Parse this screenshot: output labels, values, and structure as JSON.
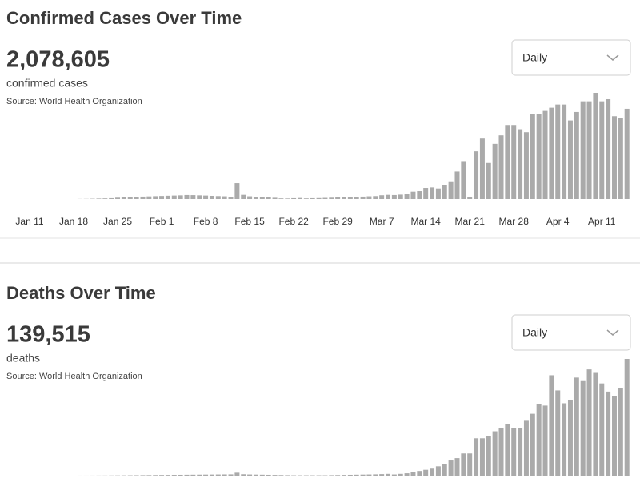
{
  "chart_data": [
    {
      "type": "bar",
      "title": "Confirmed Cases Over Time",
      "headline": "2,078,605",
      "subtitle": "confirmed cases",
      "source": "Source:  World Health Organization",
      "dropdown": "Daily",
      "color": "#aaaaaa",
      "categories": [
        "Jan 11",
        null,
        null,
        null,
        null,
        null,
        null,
        "Jan 18",
        null,
        null,
        null,
        null,
        null,
        null,
        "Jan 25",
        null,
        null,
        null,
        null,
        null,
        null,
        "Feb 1",
        null,
        null,
        null,
        null,
        null,
        null,
        "Feb 8",
        null,
        null,
        null,
        null,
        null,
        null,
        "Feb 15",
        null,
        null,
        null,
        null,
        null,
        null,
        "Feb 22",
        null,
        null,
        null,
        null,
        null,
        null,
        "Feb 29",
        null,
        null,
        null,
        null,
        null,
        null,
        "Mar 7",
        null,
        null,
        null,
        null,
        null,
        null,
        "Mar 14",
        null,
        null,
        null,
        null,
        null,
        null,
        "Mar 21",
        null,
        null,
        null,
        null,
        null,
        null,
        "Mar 28",
        null,
        null,
        null,
        null,
        null,
        null,
        "Apr 4",
        null,
        null,
        null,
        null,
        null,
        null,
        "Apr 11",
        null,
        null,
        null,
        null
      ],
      "values": [
        0,
        0,
        0,
        0,
        0,
        0,
        0,
        0,
        100,
        150,
        300,
        450,
        600,
        800,
        1300,
        1600,
        1900,
        2100,
        2300,
        2500,
        2700,
        2900,
        3100,
        3300,
        3500,
        3800,
        3700,
        3500,
        3300,
        3000,
        2800,
        2600,
        2200,
        15000,
        4000,
        2600,
        2100,
        1900,
        1800,
        1200,
        600,
        500,
        800,
        1000,
        600,
        800,
        900,
        1100,
        1300,
        1500,
        1700,
        1900,
        2000,
        2300,
        2600,
        2800,
        3600,
        4000,
        3800,
        4200,
        4500,
        7000,
        7500,
        10500,
        11000,
        10000,
        13500,
        16000,
        26000,
        35000,
        2000,
        45000,
        57000,
        34000,
        52000,
        60000,
        69000,
        69000,
        65000,
        63000,
        80000,
        80000,
        83000,
        86000,
        89000,
        89000,
        74000,
        82000,
        92000,
        92000,
        100000,
        92000,
        94000,
        78000,
        76000,
        85000
      ]
    },
    {
      "type": "bar",
      "title": "Deaths Over Time",
      "headline": "139,515",
      "subtitle": "deaths",
      "source": "Source:  World Health Organization",
      "dropdown": "Daily",
      "color": "#aaaaaa",
      "values": [
        0,
        0,
        0,
        0,
        0,
        0,
        0,
        0,
        2,
        3,
        5,
        8,
        10,
        15,
        20,
        25,
        30,
        35,
        40,
        45,
        50,
        55,
        60,
        65,
        70,
        75,
        80,
        85,
        90,
        95,
        100,
        105,
        110,
        250,
        120,
        100,
        90,
        80,
        70,
        60,
        50,
        40,
        30,
        30,
        30,
        30,
        30,
        30,
        40,
        50,
        60,
        70,
        80,
        90,
        100,
        110,
        130,
        150,
        100,
        150,
        200,
        300,
        400,
        500,
        600,
        800,
        1000,
        1300,
        1500,
        1900,
        1900,
        3200,
        3200,
        3400,
        3800,
        4100,
        4400,
        4100,
        4100,
        4700,
        5300,
        6100,
        6000,
        8600,
        7300,
        6200,
        6500,
        8400,
        8100,
        9100,
        8800,
        7900,
        7200,
        6800,
        7500,
        10000
      ]
    }
  ]
}
